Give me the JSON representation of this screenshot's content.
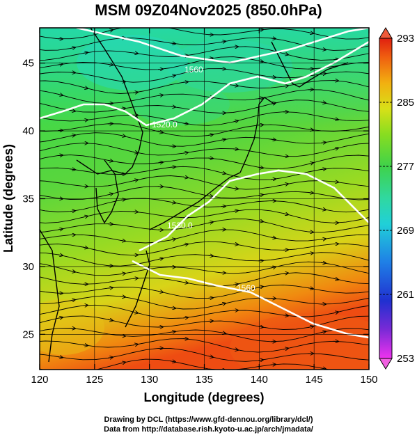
{
  "title": "MSM 09Z04Nov2025 (850.0hPa)",
  "x_axis": {
    "label": "Longitude (degrees)",
    "range": [
      120,
      150
    ],
    "ticks": [
      "120",
      "125",
      "130",
      "135",
      "140",
      "145",
      "150"
    ]
  },
  "y_axis": {
    "label": "Latitude  (degrees)",
    "range": [
      22.4,
      47.6
    ],
    "ticks": [
      "25",
      "30",
      "35",
      "40",
      "45"
    ]
  },
  "colorbar": {
    "range": [
      253,
      293
    ],
    "ticks": [
      "293",
      "285",
      "277",
      "269",
      "261",
      "253"
    ],
    "colors": [
      "#ee33ee",
      "#7a2ad6",
      "#2030d0",
      "#1f7fe6",
      "#20d0d8",
      "#30d8a0",
      "#3fd24a",
      "#88dd20",
      "#d8e018",
      "#f2b010",
      "#f06010",
      "#e02010"
    ]
  },
  "contours": {
    "color": "#ffffff",
    "labels": [
      "1560",
      "1520.0",
      "1530.0",
      "1560"
    ]
  },
  "credits": {
    "line1": "Drawing by DCL (https://www.gfd-dennou.org/library/dcl/)",
    "line2": "Data from http://database.rish.kyoto-u.ac.jp/arch/jmadata/"
  }
}
